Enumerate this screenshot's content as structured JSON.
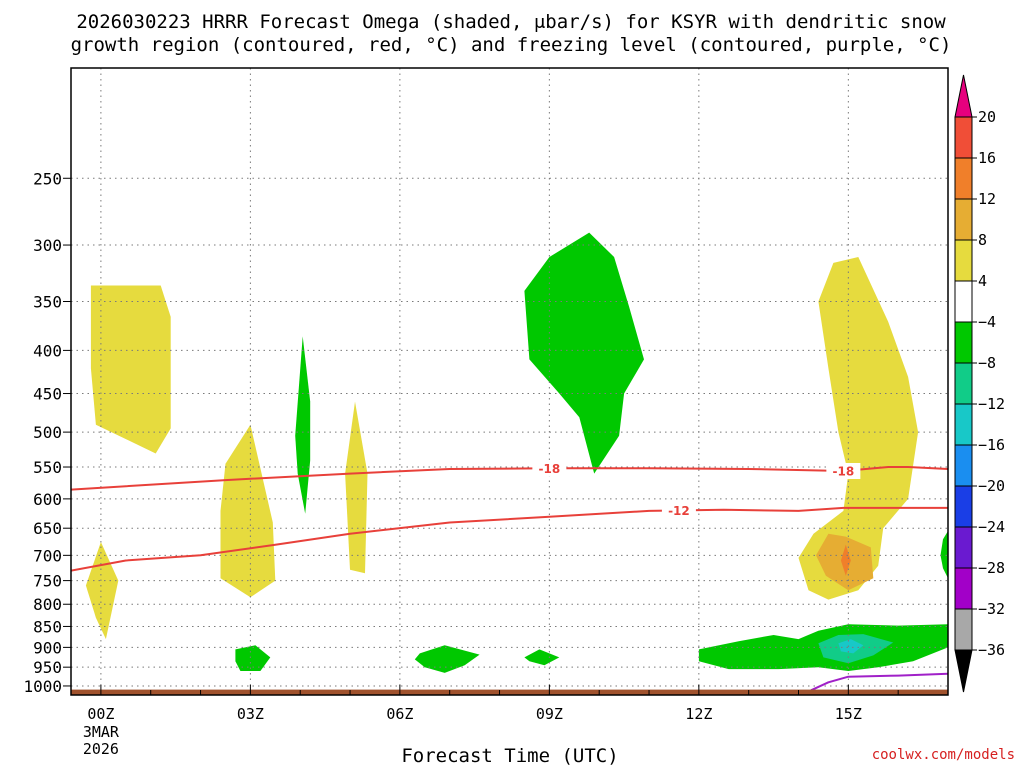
{
  "title_line1": "2026030223 HRRR Forecast Omega (shaded, μbar/s) for KSYR with dendritic snow",
  "title_line2": "growth region (contoured, red, °C) and freezing level (contoured, purple, °C)",
  "credit": "coolwx.com/models",
  "chart_data": {
    "type": "heatmap",
    "title": "2026030223 HRRR Forecast Omega (shaded, μbar/s) for KSYR with dendritic snow growth region (contoured, red, °C) and freezing level (contoured, purple, °C)",
    "xlabel": "Forecast Time (UTC)",
    "ylabel": "",
    "x_ticks": [
      {
        "hour": 0,
        "label": "00Z",
        "sub": [
          "3MAR",
          "2026"
        ]
      },
      {
        "hour": 3,
        "label": "03Z"
      },
      {
        "hour": 6,
        "label": "06Z"
      },
      {
        "hour": 9,
        "label": "09Z"
      },
      {
        "hour": 12,
        "label": "12Z"
      },
      {
        "hour": 15,
        "label": "15Z"
      }
    ],
    "xlim": [
      -0.6,
      17
    ],
    "y_scale": "log-pressure",
    "y_reversed": true,
    "ylim": [
      1025,
      185
    ],
    "y_ticks": [
      250,
      300,
      350,
      400,
      450,
      500,
      550,
      600,
      650,
      700,
      750,
      800,
      850,
      900,
      950,
      1000
    ],
    "grid": true,
    "colorbar": {
      "labels": [
        "20",
        "16",
        "12",
        "8",
        "4",
        "−4",
        "−8",
        "−12",
        "−16",
        "−20",
        "−24",
        "−28",
        "−32",
        "−36"
      ],
      "bins": [
        {
          "lo": 20,
          "color": "#e6007e"
        },
        {
          "lo": 16,
          "hi": 20,
          "color": "#f04e37"
        },
        {
          "lo": 12,
          "hi": 16,
          "color": "#f07f2a"
        },
        {
          "lo": 8,
          "hi": 12,
          "color": "#e6ad33"
        },
        {
          "lo": 4,
          "hi": 8,
          "color": "#e6db3e"
        },
        {
          "lo": -4,
          "hi": 4,
          "color": "#ffffff"
        },
        {
          "lo": -8,
          "hi": -4,
          "color": "#00c800"
        },
        {
          "lo": -12,
          "hi": -8,
          "color": "#11cc88"
        },
        {
          "lo": -16,
          "hi": -12,
          "color": "#18c8c8"
        },
        {
          "lo": -20,
          "hi": -16,
          "color": "#1a8ef0"
        },
        {
          "lo": -24,
          "hi": -20,
          "color": "#1a3ee6"
        },
        {
          "lo": -28,
          "hi": -24,
          "color": "#6a1ad0"
        },
        {
          "lo": -32,
          "hi": -28,
          "color": "#a200c8"
        },
        {
          "lo": -36,
          "hi": -32,
          "color": "#a8a8a8"
        },
        {
          "hi": -36,
          "color": "#000000"
        }
      ]
    },
    "regions": [
      {
        "level": "4",
        "color": "#e6db3e",
        "points": [
          [
            -0.2,
            335
          ],
          [
            1.2,
            335
          ],
          [
            1.4,
            365
          ],
          [
            1.4,
            495
          ],
          [
            1.1,
            530
          ],
          [
            -0.1,
            490
          ],
          [
            -0.2,
            420
          ]
        ]
      },
      {
        "level": "4",
        "color": "#e6db3e",
        "points": [
          [
            0.0,
            675
          ],
          [
            0.35,
            750
          ],
          [
            0.1,
            880
          ],
          [
            -0.1,
            830
          ],
          [
            -0.3,
            760
          ]
        ]
      },
      {
        "level": "4",
        "color": "#e6db3e",
        "points": [
          [
            3.0,
            490
          ],
          [
            3.45,
            640
          ],
          [
            3.5,
            750
          ],
          [
            3.0,
            785
          ],
          [
            2.4,
            745
          ],
          [
            2.4,
            620
          ],
          [
            2.5,
            545
          ]
        ]
      },
      {
        "level": "4",
        "color": "#e6db3e",
        "points": [
          [
            5.1,
            460
          ],
          [
            5.35,
            560
          ],
          [
            5.3,
            735
          ],
          [
            5.0,
            728
          ],
          [
            4.9,
            560
          ]
        ]
      },
      {
        "level": "4",
        "color": "#e6db3e",
        "points": [
          [
            15.2,
            310
          ],
          [
            15.8,
            370
          ],
          [
            16.2,
            430
          ],
          [
            16.4,
            500
          ],
          [
            16.2,
            600
          ],
          [
            15.7,
            650
          ],
          [
            15.6,
            720
          ],
          [
            15.2,
            770
          ],
          [
            14.6,
            790
          ],
          [
            14.2,
            770
          ],
          [
            14.0,
            705
          ],
          [
            14.3,
            660
          ],
          [
            14.9,
            620
          ],
          [
            15.0,
            560
          ],
          [
            14.8,
            500
          ],
          [
            14.6,
            420
          ],
          [
            14.4,
            350
          ],
          [
            14.7,
            315
          ]
        ]
      },
      {
        "level": "8",
        "color": "#e6ad33",
        "points": [
          [
            14.6,
            660
          ],
          [
            14.95,
            665
          ],
          [
            15.45,
            685
          ],
          [
            15.5,
            745
          ],
          [
            15.0,
            770
          ],
          [
            14.55,
            740
          ],
          [
            14.35,
            700
          ]
        ]
      },
      {
        "level": "12",
        "color": "#f07f2a",
        "points": [
          [
            14.95,
            680
          ],
          [
            15.05,
            710
          ],
          [
            14.95,
            740
          ],
          [
            14.85,
            710
          ]
        ]
      },
      {
        "level": "-4",
        "color": "#00c800",
        "points": [
          [
            3.9,
            505
          ],
          [
            4.05,
            385
          ],
          [
            4.2,
            460
          ],
          [
            4.2,
            540
          ],
          [
            4.1,
            625
          ],
          [
            3.95,
            560
          ]
        ]
      },
      {
        "level": "-4",
        "color": "#00c800",
        "points": [
          [
            9.8,
            290
          ],
          [
            10.3,
            310
          ],
          [
            10.6,
            355
          ],
          [
            10.9,
            410
          ],
          [
            10.5,
            450
          ],
          [
            10.4,
            505
          ],
          [
            9.9,
            560
          ],
          [
            9.6,
            480
          ],
          [
            9.2,
            450
          ],
          [
            8.6,
            410
          ],
          [
            8.5,
            340
          ],
          [
            9.0,
            310
          ]
        ]
      },
      {
        "level": "-4",
        "color": "#00c800",
        "points": [
          [
            2.7,
            905
          ],
          [
            3.1,
            895
          ],
          [
            3.4,
            925
          ],
          [
            3.2,
            960
          ],
          [
            2.8,
            960
          ],
          [
            2.7,
            935
          ]
        ]
      },
      {
        "level": "-4",
        "color": "#00c800",
        "points": [
          [
            6.4,
            915
          ],
          [
            6.9,
            895
          ],
          [
            7.6,
            918
          ],
          [
            7.3,
            945
          ],
          [
            6.9,
            965
          ],
          [
            6.5,
            950
          ],
          [
            6.3,
            930
          ]
        ]
      },
      {
        "level": "-4",
        "color": "#00c800",
        "points": [
          [
            8.5,
            925
          ],
          [
            8.8,
            905
          ],
          [
            9.2,
            925
          ],
          [
            8.9,
            945
          ],
          [
            8.6,
            935
          ]
        ]
      },
      {
        "level": "-4",
        "color": "#00c800",
        "points": [
          [
            12.0,
            905
          ],
          [
            12.8,
            885
          ],
          [
            13.5,
            870
          ],
          [
            14.0,
            880
          ],
          [
            14.4,
            860
          ],
          [
            15.0,
            845
          ],
          [
            16.0,
            848
          ],
          [
            17.0,
            845
          ],
          [
            17.0,
            900
          ],
          [
            16.3,
            935
          ],
          [
            15.6,
            950
          ],
          [
            15.0,
            960
          ],
          [
            14.4,
            950
          ],
          [
            13.6,
            955
          ],
          [
            12.6,
            955
          ],
          [
            12.0,
            935
          ]
        ]
      },
      {
        "level": "-4",
        "color": "#00c800",
        "points": [
          [
            16.9,
            670
          ],
          [
            17.0,
            655
          ],
          [
            17.0,
            745
          ],
          [
            16.9,
            725
          ],
          [
            16.85,
            700
          ]
        ]
      },
      {
        "level": "-8",
        "color": "#11cc88",
        "points": [
          [
            14.4,
            890
          ],
          [
            14.8,
            870
          ],
          [
            15.3,
            868
          ],
          [
            15.9,
            888
          ],
          [
            15.5,
            920
          ],
          [
            15.0,
            940
          ],
          [
            14.5,
            925
          ]
        ]
      },
      {
        "level": "-12",
        "color": "#18c8c8",
        "points": [
          [
            14.8,
            890
          ],
          [
            15.05,
            880
          ],
          [
            15.3,
            895
          ],
          [
            15.1,
            915
          ],
          [
            14.85,
            910
          ]
        ]
      }
    ],
    "contours": [
      {
        "name": "-18",
        "color": "#e8403a",
        "label_hours": [
          9.0,
          14.9
        ],
        "points": [
          [
            -0.6,
            585
          ],
          [
            2.5,
            570
          ],
          [
            5.0,
            560
          ],
          [
            7.0,
            553
          ],
          [
            9.0,
            552
          ],
          [
            11.0,
            552
          ],
          [
            13.0,
            553
          ],
          [
            14.9,
            556
          ],
          [
            15.8,
            550
          ],
          [
            16.2,
            550
          ],
          [
            17.0,
            553
          ]
        ]
      },
      {
        "name": "-12",
        "color": "#e8403a",
        "label_hours": [
          11.6
        ],
        "points": [
          [
            -0.6,
            730
          ],
          [
            0.5,
            710
          ],
          [
            2.0,
            700
          ],
          [
            3.5,
            680
          ],
          [
            5.0,
            660
          ],
          [
            7.0,
            640
          ],
          [
            9.0,
            630
          ],
          [
            11.0,
            620
          ],
          [
            12.5,
            618
          ],
          [
            14.0,
            620
          ],
          [
            14.9,
            615
          ],
          [
            15.8,
            615
          ],
          [
            17.0,
            615
          ]
        ]
      },
      {
        "name": "freezing level",
        "color": "#a020c8",
        "points": [
          [
            14.25,
            1012
          ],
          [
            14.6,
            990
          ],
          [
            15.0,
            975
          ],
          [
            16.0,
            972
          ],
          [
            17.0,
            967
          ]
        ]
      }
    ],
    "ground": {
      "color": "#a0522d",
      "from_pressure": 1010
    }
  }
}
